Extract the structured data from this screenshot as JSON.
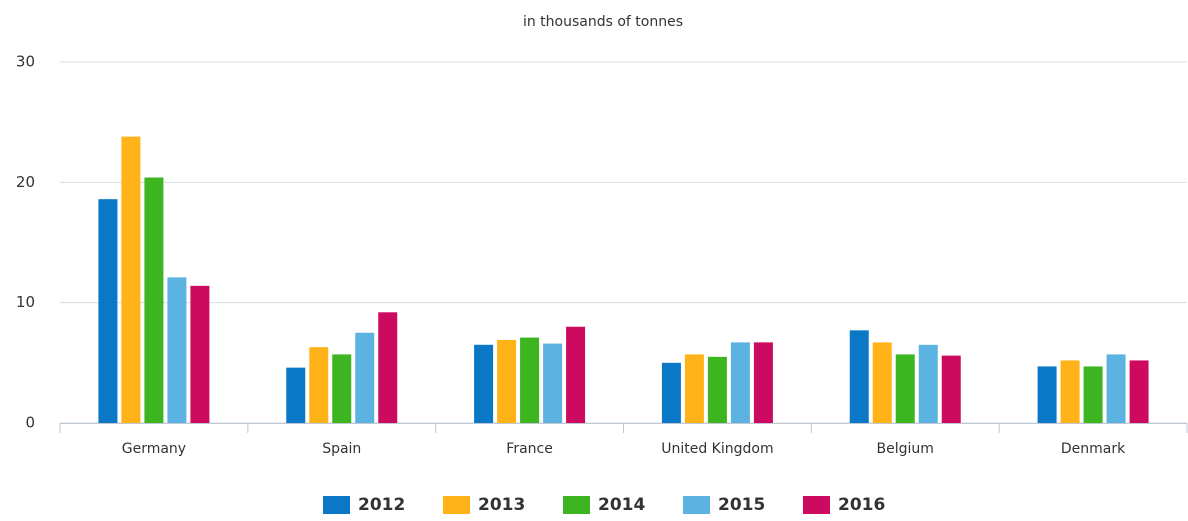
{
  "chart_data": {
    "type": "bar",
    "subtitle": "in thousands of tonnes",
    "categories": [
      "Germany",
      "Spain",
      "France",
      "United Kingdom",
      "Belgium",
      "Denmark"
    ],
    "series": [
      {
        "name": "2012",
        "color": "#0a77c7",
        "values": [
          18.6,
          4.6,
          6.5,
          5.0,
          7.7,
          4.7
        ]
      },
      {
        "name": "2013",
        "color": "#ffb319",
        "values": [
          23.8,
          6.3,
          6.9,
          5.7,
          6.7,
          5.2
        ]
      },
      {
        "name": "2014",
        "color": "#3cb521",
        "values": [
          20.4,
          5.7,
          7.1,
          5.5,
          5.7,
          4.7
        ]
      },
      {
        "name": "2015",
        "color": "#5cb3e1",
        "values": [
          12.1,
          7.5,
          6.6,
          6.7,
          6.5,
          5.7
        ]
      },
      {
        "name": "2016",
        "color": "#cc0a5f",
        "values": [
          11.4,
          9.2,
          8.0,
          6.7,
          5.6,
          5.2
        ]
      }
    ],
    "ylim": [
      0,
      30
    ],
    "yticks": [
      0,
      10,
      20,
      30
    ],
    "grid": true,
    "legend": "bottom"
  }
}
